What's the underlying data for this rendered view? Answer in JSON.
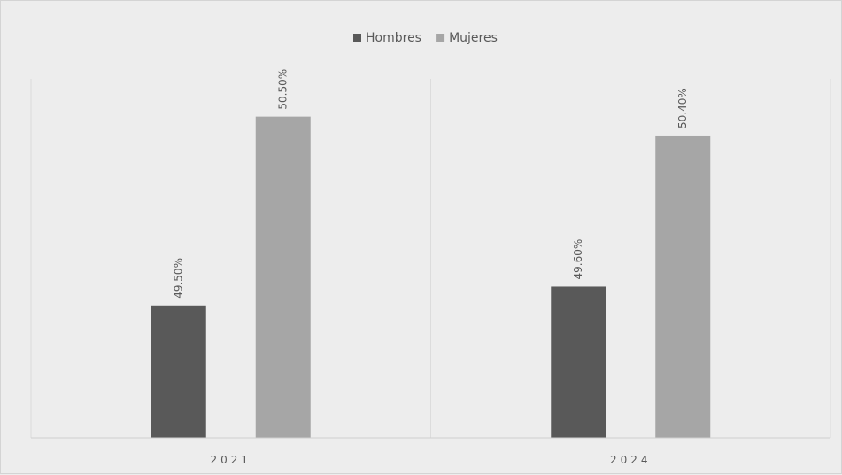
{
  "chart_data": {
    "type": "bar",
    "categories": [
      "2021",
      "2024"
    ],
    "series": [
      {
        "name": "Hombres",
        "values": [
          49.5,
          49.6
        ],
        "labels": [
          "49.50%",
          "49.60%"
        ],
        "color": "#595959"
      },
      {
        "name": "Mujeres",
        "values": [
          50.5,
          50.4
        ],
        "labels": [
          "50.50%",
          "50.40%"
        ],
        "color": "#a6a6a6"
      }
    ],
    "title": "",
    "xlabel": "",
    "ylabel": "",
    "ylim": [
      48.8,
      50.7
    ],
    "grid": false,
    "legend_position": "top-center",
    "data_labels": "rotated-vertical",
    "background_color": "#ededed"
  }
}
